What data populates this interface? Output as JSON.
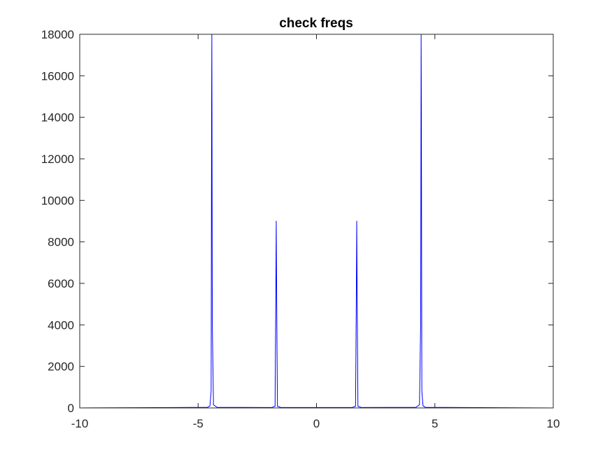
{
  "chart_data": {
    "type": "line",
    "title": "check freqs",
    "xlabel": "",
    "ylabel": "",
    "xlim": [
      -10,
      10
    ],
    "ylim": [
      0,
      18000
    ],
    "xticks": [
      -10,
      -5,
      0,
      5,
      10
    ],
    "yticks": [
      0,
      2000,
      4000,
      6000,
      8000,
      10000,
      12000,
      14000,
      16000,
      18000
    ],
    "xtick_labels": [
      "-10",
      "-5",
      "0",
      "5",
      "10"
    ],
    "ytick_labels": [
      "0",
      "2000",
      "4000",
      "6000",
      "8000",
      "10000",
      "12000",
      "14000",
      "16000",
      "18000"
    ],
    "grid": false,
    "legend": "none",
    "series": [
      {
        "color": "#0000ff",
        "x": [
          -10,
          -4.6,
          -4.5,
          -4.45,
          -4.43,
          -4.42,
          -4.4,
          -4.35,
          -4.2,
          -1.9,
          -1.75,
          -1.72,
          -1.7,
          -1.68,
          -1.65,
          -1.5,
          1.5,
          1.65,
          1.68,
          1.7,
          1.72,
          1.75,
          1.9,
          4.2,
          4.35,
          4.4,
          4.42,
          4.43,
          4.45,
          4.5,
          4.6,
          10
        ],
        "y": [
          0,
          30,
          100,
          800,
          14700,
          18000,
          4000,
          150,
          30,
          20,
          80,
          5000,
          9000,
          5000,
          80,
          20,
          20,
          80,
          5000,
          9000,
          5000,
          80,
          20,
          30,
          150,
          4000,
          18000,
          14700,
          800,
          100,
          30,
          0
        ]
      }
    ]
  }
}
